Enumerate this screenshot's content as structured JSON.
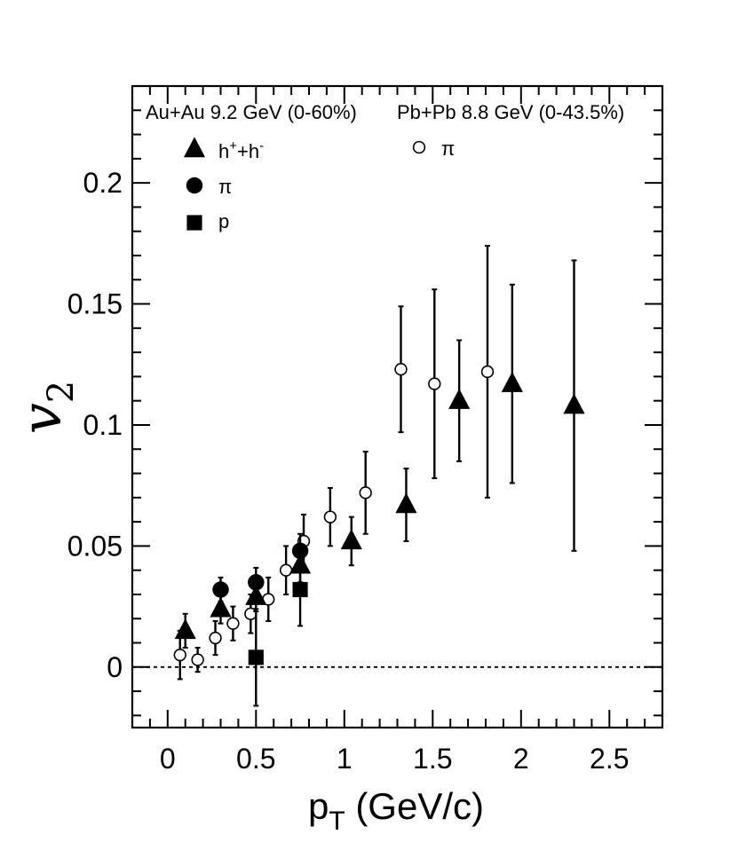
{
  "chart_data": {
    "type": "scatter",
    "title": "",
    "xlabel": "p",
    "xlabel_sub": "T",
    "xlabel_unit": " (GeV/c)",
    "ylabel": "v",
    "ylabel_sub": "2",
    "xlim": [
      -0.2,
      2.8
    ],
    "ylim": [
      -0.025,
      0.24
    ],
    "x_ticks": [
      0,
      0.5,
      1,
      1.5,
      2,
      2.5
    ],
    "x_tick_labels": [
      "0",
      "0.5",
      "1",
      "1.5",
      "2",
      "2.5"
    ],
    "y_ticks": [
      0,
      0.05,
      0.1,
      0.15,
      0.2
    ],
    "y_tick_labels": [
      "0",
      "0.05",
      "0.1",
      "0.15",
      "0.2"
    ],
    "reference_line": {
      "y": 0,
      "style": "dashed"
    },
    "grid": false,
    "group_labels": {
      "left": "Au+Au 9.2 GeV (0-60%)",
      "right": "Pb+Pb 8.8 GeV (0-43.5%)"
    },
    "series": [
      {
        "name": "h⁺+h⁻",
        "group": "left",
        "marker": "triangle",
        "filled": true,
        "points": [
          {
            "x": 0.1,
            "y": 0.015,
            "err": 0.007
          },
          {
            "x": 0.3,
            "y": 0.024,
            "err": 0.006
          },
          {
            "x": 0.5,
            "y": 0.029,
            "err": 0.006
          },
          {
            "x": 0.75,
            "y": 0.042,
            "err": 0.007
          },
          {
            "x": 1.04,
            "y": 0.052,
            "err": 0.01
          },
          {
            "x": 1.35,
            "y": 0.067,
            "err": 0.015
          },
          {
            "x": 1.65,
            "y": 0.11,
            "err": 0.025
          },
          {
            "x": 1.95,
            "y": 0.117,
            "err": 0.041
          },
          {
            "x": 2.3,
            "y": 0.108,
            "err": 0.06
          }
        ]
      },
      {
        "name": "π",
        "group": "left",
        "marker": "circle",
        "filled": true,
        "points": [
          {
            "x": 0.3,
            "y": 0.032,
            "err": 0.005
          },
          {
            "x": 0.5,
            "y": 0.035,
            "err": 0.006
          },
          {
            "x": 0.75,
            "y": 0.048,
            "err": 0.007
          }
        ]
      },
      {
        "name": "p",
        "group": "left",
        "marker": "square",
        "filled": true,
        "points": [
          {
            "x": 0.5,
            "y": 0.004,
            "err": 0.02
          },
          {
            "x": 0.75,
            "y": 0.032,
            "err": 0.015
          }
        ]
      },
      {
        "name": "π",
        "group": "right",
        "marker": "circle",
        "filled": false,
        "points": [
          {
            "x": 0.07,
            "y": 0.005,
            "err": 0.01
          },
          {
            "x": 0.17,
            "y": 0.003,
            "err": 0.005
          },
          {
            "x": 0.27,
            "y": 0.012,
            "err": 0.007
          },
          {
            "x": 0.37,
            "y": 0.018,
            "err": 0.007
          },
          {
            "x": 0.47,
            "y": 0.022,
            "err": 0.008
          },
          {
            "x": 0.57,
            "y": 0.028,
            "err": 0.009
          },
          {
            "x": 0.67,
            "y": 0.04,
            "err": 0.01
          },
          {
            "x": 0.77,
            "y": 0.052,
            "err": 0.011
          },
          {
            "x": 0.92,
            "y": 0.062,
            "err": 0.012
          },
          {
            "x": 1.12,
            "y": 0.072,
            "err": 0.017
          },
          {
            "x": 1.32,
            "y": 0.123,
            "err": 0.026
          },
          {
            "x": 1.51,
            "y": 0.117,
            "err": 0.039
          },
          {
            "x": 1.81,
            "y": 0.122,
            "err": 0.052
          }
        ]
      }
    ],
    "legend": [
      {
        "marker": "triangle",
        "filled": true,
        "base": "h",
        "sup1": "+",
        "mid": "+h",
        "sup2": "-"
      },
      {
        "marker": "circle",
        "filled": true,
        "label": "π"
      },
      {
        "marker": "square",
        "filled": true,
        "label": "p"
      },
      {
        "marker": "circle",
        "filled": false,
        "label": "π"
      }
    ]
  }
}
